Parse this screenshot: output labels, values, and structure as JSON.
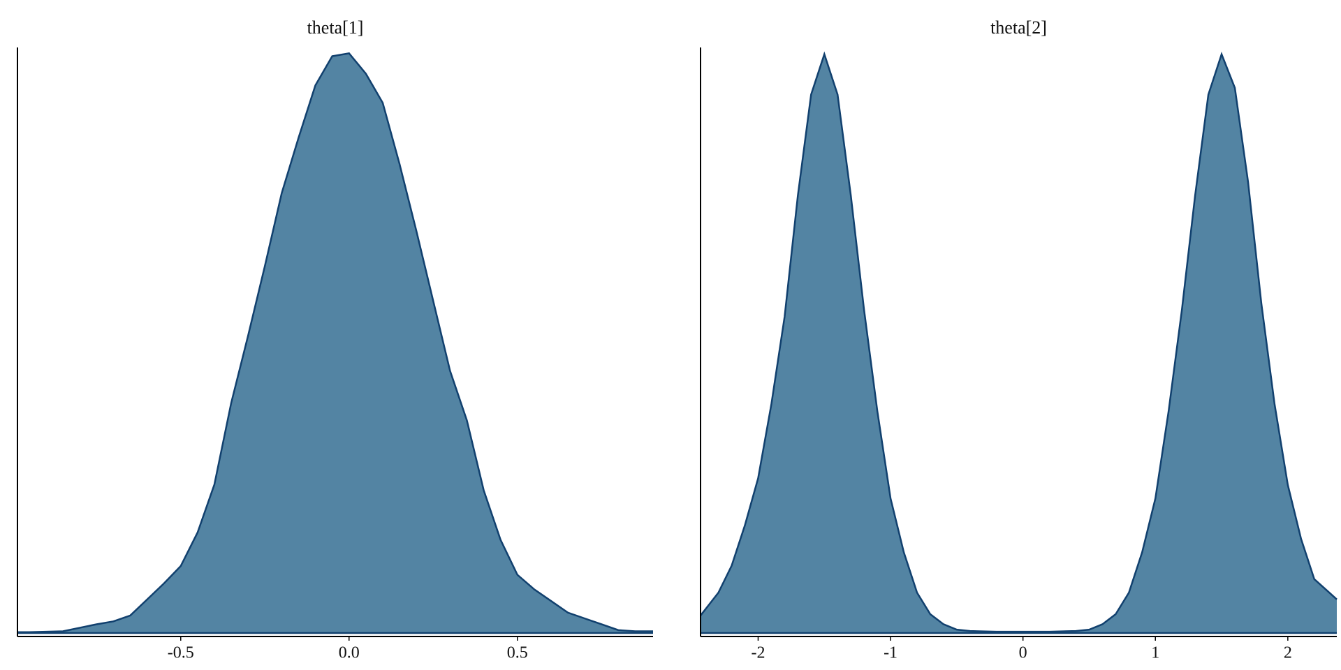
{
  "chart_data": [
    {
      "type": "density",
      "title": "theta[1]",
      "color": "#5384a3",
      "line_color": "#11406e",
      "x": [
        -0.985,
        -0.95,
        -0.85,
        -0.75,
        -0.7,
        -0.65,
        -0.6,
        -0.55,
        -0.5,
        -0.45,
        -0.4,
        -0.35,
        -0.3,
        -0.25,
        -0.2,
        -0.15,
        -0.1,
        -0.05,
        0.0,
        0.05,
        0.1,
        0.15,
        0.2,
        0.25,
        0.3,
        0.35,
        0.4,
        0.45,
        0.5,
        0.55,
        0.6,
        0.65,
        0.7,
        0.75,
        0.8,
        0.85,
        0.903
      ],
      "values": [
        0.003,
        0.003,
        0.006,
        0.03,
        0.04,
        0.06,
        0.115,
        0.17,
        0.23,
        0.345,
        0.51,
        0.79,
        1.02,
        1.26,
        1.51,
        1.7,
        1.88,
        1.98,
        1.99,
        1.92,
        1.82,
        1.61,
        1.38,
        1.14,
        0.9,
        0.73,
        0.49,
        0.32,
        0.2,
        0.15,
        0.11,
        0.07,
        0.05,
        0.03,
        0.01,
        0.006,
        0.006
      ],
      "xlim": [
        -0.985,
        0.903
      ],
      "ylim": [
        0,
        2.01
      ],
      "xticks": [
        -0.5,
        {
          "value": 0,
          "label": "0.0"
        },
        0.5
      ]
    },
    {
      "type": "density",
      "title": "theta[2]",
      "color": "#5384a3",
      "line_color": "#11406e",
      "x": [
        -2.435,
        -2.3,
        -2.2,
        -2.1,
        -2.0,
        -1.9,
        -1.8,
        -1.7,
        -1.6,
        -1.5,
        -1.4,
        -1.3,
        -1.2,
        -1.1,
        -1.0,
        -0.9,
        -0.8,
        -0.7,
        -0.6,
        -0.5,
        -0.4,
        -0.2,
        0,
        0.2,
        0.4,
        0.5,
        0.6,
        0.7,
        0.8,
        0.9,
        1.0,
        1.1,
        1.2,
        1.3,
        1.4,
        1.5,
        1.6,
        1.7,
        1.8,
        1.9,
        2.0,
        2.1,
        2.2,
        2.37
      ],
      "values": [
        0.026,
        0.06,
        0.1,
        0.16,
        0.23,
        0.34,
        0.47,
        0.65,
        0.8,
        0.86,
        0.8,
        0.65,
        0.48,
        0.33,
        0.2,
        0.12,
        0.06,
        0.028,
        0.013,
        0.005,
        0.003,
        0.002,
        0.002,
        0.002,
        0.003,
        0.005,
        0.013,
        0.028,
        0.06,
        0.12,
        0.2,
        0.33,
        0.48,
        0.65,
        0.8,
        0.86,
        0.81,
        0.67,
        0.49,
        0.34,
        0.22,
        0.14,
        0.08,
        0.05
      ],
      "xlim": [
        -2.435,
        2.37
      ],
      "ylim": [
        0,
        0.87
      ],
      "xticks": [
        -2,
        -1,
        0,
        1,
        2
      ]
    }
  ]
}
